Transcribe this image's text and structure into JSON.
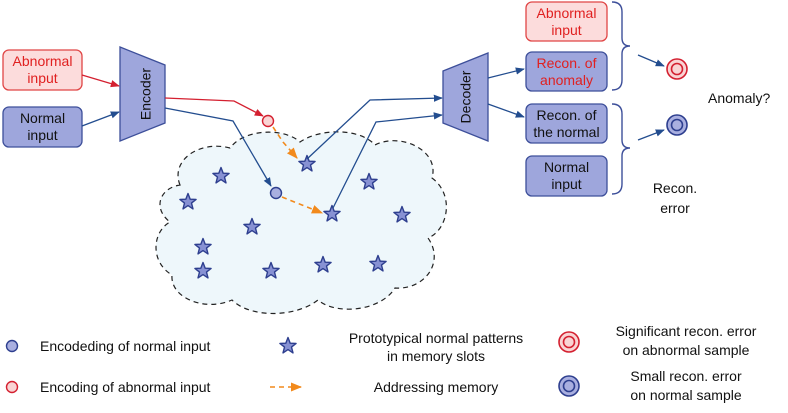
{
  "inputs": {
    "abnormal": [
      "Abnormal",
      "input"
    ],
    "normal": [
      "Normal",
      "input"
    ]
  },
  "encoder_label": "Encoder",
  "decoder_label": "Decoder",
  "outputs": {
    "abnormal_input": [
      "Abnormal",
      "input"
    ],
    "recon_anomaly": [
      "Recon. of",
      "anomaly"
    ],
    "recon_normal": [
      "Recon. of",
      "the normal"
    ],
    "normal_input": [
      "Normal",
      "input"
    ]
  },
  "anomaly_question": "Anomaly?",
  "recon_error": [
    "Recon.",
    "error"
  ],
  "legend": {
    "normal_encoding": "Encodeding of normal input",
    "abnormal_encoding": "Encoding of abnormal input",
    "prototypes": [
      "Prototypical normal patterns",
      "in memory slots"
    ],
    "addressing": "Addressing memory",
    "significant_error": [
      "Significant recon. error",
      "on abnormal sample"
    ],
    "small_error": [
      "Small recon. error",
      "on normal sample"
    ]
  },
  "colors": {
    "box_fill": "#9ea6dc",
    "box_stroke": "#3d4f9a",
    "abnormal_fill": "#fcdcdc",
    "abnormal_stroke": "#e04545",
    "red_text": "#e02020",
    "normal_arrow": "#234d8f",
    "abnormal_arrow": "#d42030",
    "addressing_arrow": "#f28a1c",
    "memory_fill": "#eef7fb"
  }
}
